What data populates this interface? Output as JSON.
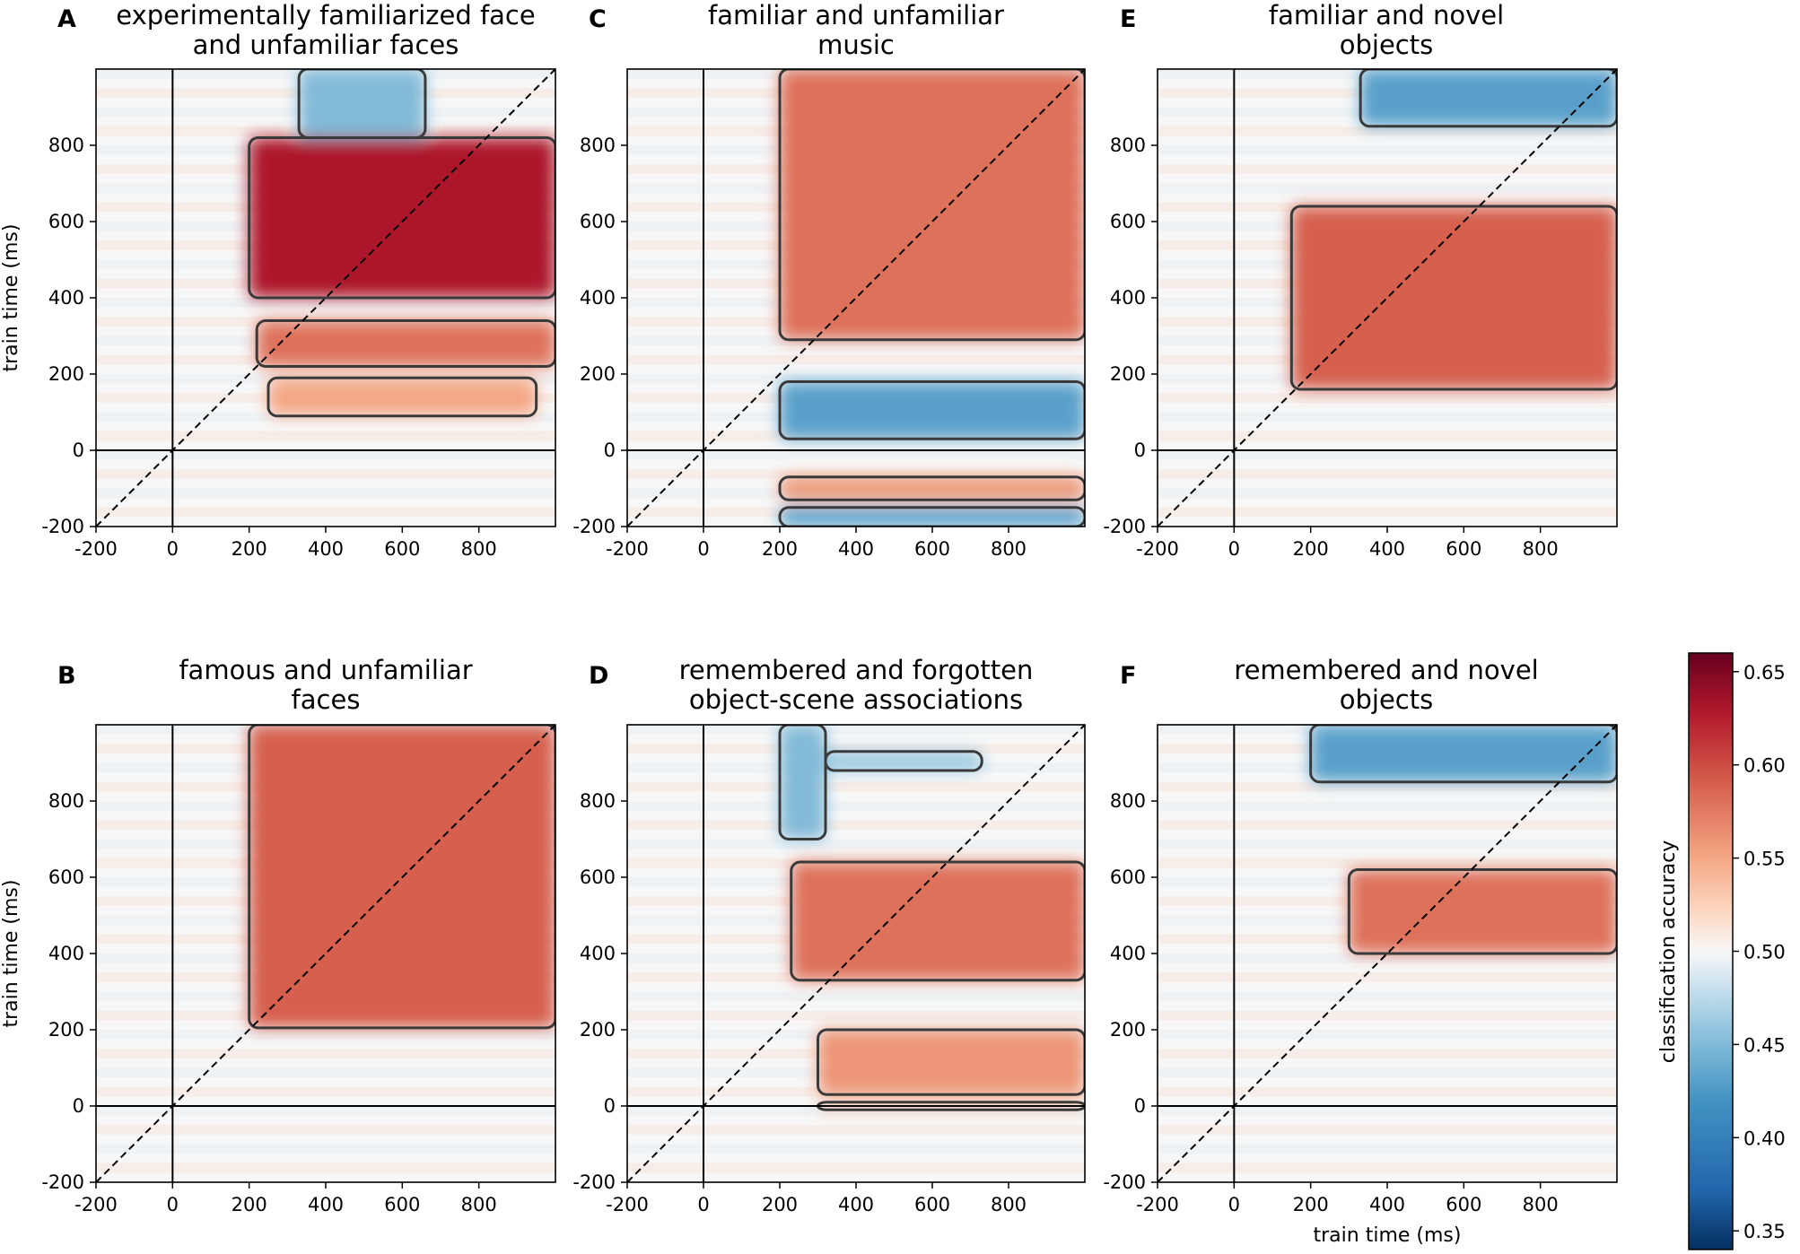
{
  "chart_data": {
    "type": "heatmap",
    "description_units": "temporal generalization matrices, classification accuracy",
    "x_axis": {
      "label": "train time (ms)",
      "range": [
        -200,
        1000
      ],
      "ticks": [
        -200,
        0,
        200,
        400,
        600,
        800
      ],
      "tick_labels": [
        "-200",
        "0",
        "200",
        "400",
        "600",
        "800"
      ]
    },
    "y_axis": {
      "label": "train time (ms)",
      "range": [
        -200,
        1000
      ],
      "ticks": [
        -200,
        0,
        200,
        400,
        600,
        800
      ],
      "tick_labels": [
        "-200",
        "0",
        "200",
        "400",
        "600",
        "800"
      ]
    },
    "colorbar": {
      "label": "classification accuracy",
      "range": [
        0.34,
        0.66
      ],
      "ticks": [
        0.35,
        0.4,
        0.45,
        0.5,
        0.55,
        0.6,
        0.65
      ],
      "tick_labels": [
        "0.35",
        "0.40",
        "0.45",
        "0.50",
        "0.55",
        "0.60",
        "0.65"
      ],
      "colormap": "RdBu_r",
      "color_low": "#053061",
      "color_mid": "#f7f7f7",
      "color_high": "#67001f"
    },
    "panels": [
      {
        "letter": "A",
        "title_lines": [
          "experimentally familiarized face",
          "and unfamiliar faces"
        ],
        "show_ylabel": true,
        "show_xlabel": false,
        "regions": [
          {
            "x": [
              200,
              1000
            ],
            "y": [
              400,
              820
            ],
            "peak": 0.63,
            "contoured": true
          },
          {
            "x": [
              220,
              1000
            ],
            "y": [
              220,
              340
            ],
            "peak": 0.58,
            "contoured": true
          },
          {
            "x": [
              250,
              950
            ],
            "y": [
              90,
              190
            ],
            "peak": 0.55,
            "contoured": true
          },
          {
            "x": [
              330,
              660
            ],
            "y": [
              820,
              1000
            ],
            "peak": 0.45,
            "contoured": true
          }
        ]
      },
      {
        "letter": "B",
        "title_lines": [
          "famous and unfamiliar",
          "faces"
        ],
        "show_ylabel": true,
        "show_xlabel": false,
        "regions": [
          {
            "x": [
              200,
              1000
            ],
            "y": [
              205,
              1000
            ],
            "peak": 0.59,
            "contoured": true
          }
        ]
      },
      {
        "letter": "C",
        "title_lines": [
          "familiar and unfamiliar",
          "music"
        ],
        "show_ylabel": false,
        "show_xlabel": false,
        "regions": [
          {
            "x": [
              200,
              1000
            ],
            "y": [
              290,
              1000
            ],
            "peak": 0.58,
            "contoured": true
          },
          {
            "x": [
              200,
              1000
            ],
            "y": [
              30,
              180
            ],
            "peak": 0.43,
            "contoured": true
          },
          {
            "x": [
              200,
              1000
            ],
            "y": [
              -130,
              -70
            ],
            "peak": 0.56,
            "contoured": true
          },
          {
            "x": [
              200,
              1000
            ],
            "y": [
              -200,
              -150
            ],
            "peak": 0.43,
            "contoured": true
          }
        ]
      },
      {
        "letter": "D",
        "title_lines": [
          "remembered and forgotten",
          "object-scene associations"
        ],
        "show_ylabel": false,
        "show_xlabel": false,
        "regions": [
          {
            "x": [
              200,
              320
            ],
            "y": [
              700,
              1000
            ],
            "peak": 0.45,
            "contoured": true
          },
          {
            "x": [
              320,
              730
            ],
            "y": [
              880,
              930
            ],
            "peak": 0.46,
            "contoured": true
          },
          {
            "x": [
              230,
              1000
            ],
            "y": [
              330,
              640
            ],
            "peak": 0.58,
            "contoured": true
          },
          {
            "x": [
              300,
              1000
            ],
            "y": [
              30,
              200
            ],
            "peak": 0.56,
            "contoured": true
          },
          {
            "x": [
              300,
              1000
            ],
            "y": [
              -10,
              10
            ],
            "peak": 0.54,
            "contoured": true
          }
        ]
      },
      {
        "letter": "E",
        "title_lines": [
          "familiar and novel",
          "objects"
        ],
        "show_ylabel": false,
        "show_xlabel": false,
        "regions": [
          {
            "x": [
              150,
              1000
            ],
            "y": [
              160,
              640
            ],
            "peak": 0.59,
            "contoured": true
          },
          {
            "x": [
              330,
              1000
            ],
            "y": [
              850,
              1000
            ],
            "peak": 0.43,
            "contoured": true
          }
        ]
      },
      {
        "letter": "F",
        "title_lines": [
          "remembered and novel",
          "objects"
        ],
        "show_ylabel": false,
        "show_xlabel": true,
        "regions": [
          {
            "x": [
              300,
              1000
            ],
            "y": [
              400,
              620
            ],
            "peak": 0.58,
            "contoured": true
          },
          {
            "x": [
              200,
              1000
            ],
            "y": [
              850,
              1000
            ],
            "peak": 0.43,
            "contoured": true
          }
        ]
      }
    ]
  }
}
